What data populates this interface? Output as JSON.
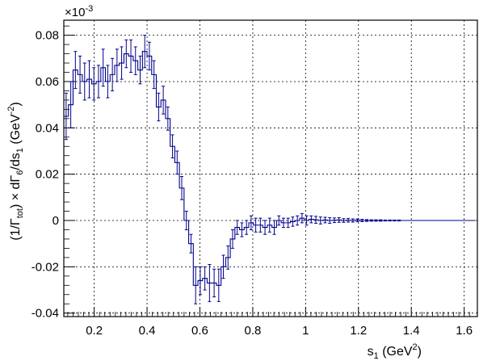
{
  "chart_data": {
    "type": "line",
    "style": "histogram-with-error-bars",
    "title": "",
    "xlabel": "s_1 (GeV^2)",
    "ylabel": "(1/Γ_tot) × dΓ_6/ds_1 (GeV^-2)",
    "y_exponent": "×10^-3",
    "xlim": [
      0.085,
      1.65
    ],
    "ylim": [
      -0.0415,
      0.0865
    ],
    "x_ticks": [
      0.2,
      0.4,
      0.6,
      0.8,
      1.0,
      1.2,
      1.4,
      1.6
    ],
    "x_tick_labels": [
      "0.2",
      "0.4",
      "0.6",
      "0.8",
      "1",
      "1.2",
      "1.4",
      "1.6"
    ],
    "y_ticks": [
      -0.04,
      -0.02,
      0,
      0.02,
      0.04,
      0.06,
      0.08
    ],
    "y_tick_labels": [
      "-0.04",
      "-0.02",
      "0",
      "0.02",
      "0.04",
      "0.06",
      "0.08"
    ],
    "grid": true,
    "legend": "none",
    "line_color": "#00008b",
    "bin_width": 0.0175,
    "bin_start": 0.085,
    "series": [
      {
        "x": [
          0.0938,
          0.1113,
          0.1288,
          0.1463,
          0.1638,
          0.1813,
          0.1988,
          0.2163,
          0.2338,
          0.2513,
          0.2688,
          0.2863,
          0.3038,
          0.3213,
          0.3388,
          0.3563,
          0.3738,
          0.3913,
          0.4088,
          0.4263,
          0.4438,
          0.4613,
          0.4788,
          0.4963,
          0.5138,
          0.5313,
          0.5488,
          0.5663,
          0.5838,
          0.6013,
          0.6188,
          0.6363,
          0.6538,
          0.6713,
          0.6888,
          0.7063,
          0.7238,
          0.7413,
          0.7588,
          0.7763,
          0.7938,
          0.8113,
          0.8288,
          0.8463,
          0.8638,
          0.8813,
          0.8988,
          0.9163,
          0.9338,
          0.9513,
          0.9688,
          0.9863,
          1.0038,
          1.0213,
          1.0388,
          1.0563,
          1.0738,
          1.0913,
          1.1088,
          1.1263,
          1.1438,
          1.1613,
          1.1788,
          1.1963,
          1.2138,
          1.2313,
          1.2488,
          1.2663,
          1.2838,
          1.3013,
          1.3188,
          1.3363,
          1.3538,
          1.3713,
          1.3888,
          1.4063,
          1.4238,
          1.4413,
          1.4588,
          1.4763,
          1.4938,
          1.5113,
          1.5288,
          1.5463,
          1.5638,
          1.5813,
          1.5988,
          1.6163,
          1.6338
        ],
        "values": [
          0.045,
          0.05,
          0.065,
          0.063,
          0.06,
          0.061,
          0.059,
          0.06,
          0.066,
          0.06,
          0.063,
          0.067,
          0.068,
          0.072,
          0.071,
          0.069,
          0.065,
          0.073,
          0.071,
          0.063,
          0.049,
          0.052,
          0.044,
          0.032,
          0.025,
          0.014,
          0.0,
          -0.01,
          -0.028,
          -0.026,
          -0.025,
          -0.027,
          -0.027,
          -0.028,
          -0.02,
          -0.016,
          -0.008,
          -0.003,
          -0.004,
          -0.003,
          -0.001,
          -0.002,
          -0.002,
          -0.003,
          -0.002,
          -0.003,
          0.0,
          -0.001,
          -0.001,
          -0.0005,
          0.0,
          0.001,
          0.0,
          0.0005,
          0.0003,
          0.0,
          0.0002,
          0.0,
          0.0001,
          0.0002,
          0.0,
          0.0001,
          0.0,
          0.0001,
          0.0,
          0.0,
          0.0,
          0.0,
          0.0,
          0.0,
          0.0,
          0.0,
          0.0,
          0.0,
          0.0,
          0.0,
          0.0,
          0.0,
          0.0,
          0.0,
          0.0,
          0.0,
          0.0,
          0.0,
          0.0,
          0.0,
          0.0,
          0.0,
          0.0
        ],
        "errors": [
          0.01,
          0.01,
          0.008,
          0.008,
          0.008,
          0.008,
          0.007,
          0.007,
          0.008,
          0.007,
          0.007,
          0.007,
          0.007,
          0.006,
          0.007,
          0.006,
          0.006,
          0.007,
          0.006,
          0.006,
          0.006,
          0.006,
          0.005,
          0.005,
          0.005,
          0.005,
          0.004,
          0.004,
          0.008,
          0.006,
          0.005,
          0.008,
          0.006,
          0.007,
          0.005,
          0.005,
          0.004,
          0.003,
          0.003,
          0.003,
          0.003,
          0.003,
          0.003,
          0.003,
          0.003,
          0.003,
          0.002,
          0.002,
          0.002,
          0.002,
          0.002,
          0.002,
          0.002,
          0.0015,
          0.0015,
          0.0015,
          0.0012,
          0.0012,
          0.001,
          0.001,
          0.0008,
          0.0008,
          0.0007,
          0.0006,
          0.0005,
          0.0004,
          0.0003,
          0.0003,
          0.0003,
          0.0002,
          0.0002,
          0.0002,
          0.0002,
          0.0001,
          0.0001,
          0.0001,
          0.0001,
          0.0001,
          0.0001,
          0.0001,
          0.0001,
          0.0001,
          0.0001,
          0.0001,
          0.0001,
          0.0001,
          0.0001,
          0.0001,
          0.0001
        ]
      }
    ]
  }
}
